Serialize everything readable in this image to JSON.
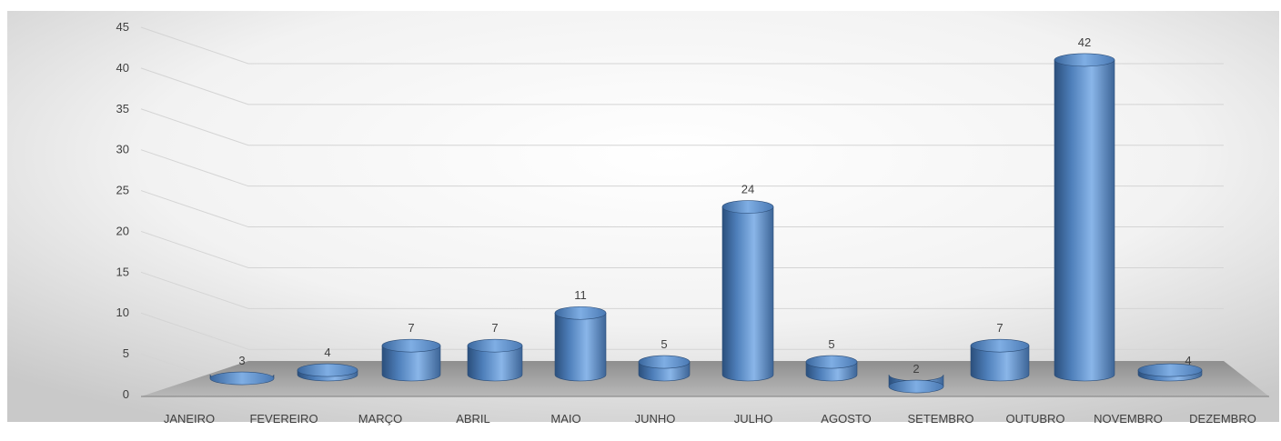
{
  "chart_data": {
    "type": "bar",
    "title": "",
    "xlabel": "",
    "ylabel": "",
    "ylim": [
      0,
      45
    ],
    "yticks": [
      0,
      5,
      10,
      15,
      20,
      25,
      30,
      35,
      40,
      45
    ],
    "grid": true,
    "legend": "none",
    "bar_color": "#4f81bd",
    "categories": [
      "JANEIRO",
      "FEVEREIRO",
      "MARÇO",
      "ABRIL",
      "MAIO",
      "JUNHO",
      "JULHO",
      "AGOSTO",
      "SETEMBRO",
      "OUTUBRO",
      "NOVEMBRO",
      "DEZEMBRO"
    ],
    "values": [
      3,
      4,
      7,
      7,
      11,
      5,
      24,
      5,
      2,
      7,
      42,
      4
    ]
  }
}
